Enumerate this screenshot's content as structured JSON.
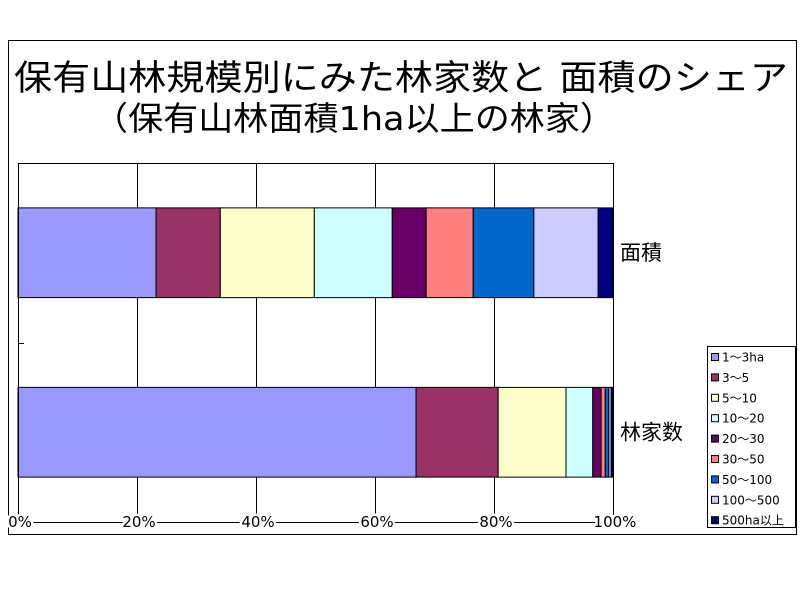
{
  "chart_data": {
    "type": "bar",
    "orientation": "horizontal",
    "stacking": "percent",
    "title": "保有山林規模別にみた林家数と 面積のシェア",
    "subtitle": "（保有山林面積1ha以上の林家）",
    "categories": [
      "面積",
      "林家数"
    ],
    "series": [
      {
        "name": "1～3ha",
        "values": [
          23.2,
          66.9
        ],
        "color": "#9999FF"
      },
      {
        "name": "3～5",
        "values": [
          10.8,
          13.8
        ],
        "color": "#993366"
      },
      {
        "name": "5～10",
        "values": [
          15.8,
          11.4
        ],
        "color": "#FFFFCC"
      },
      {
        "name": "10～20",
        "values": [
          13.1,
          4.5
        ],
        "color": "#CCFFFF"
      },
      {
        "name": "20～30",
        "values": [
          5.7,
          1.4
        ],
        "color": "#660066"
      },
      {
        "name": "30～50",
        "values": [
          7.9,
          0.7
        ],
        "color": "#FF8080"
      },
      {
        "name": "50～100",
        "values": [
          10.2,
          0.6
        ],
        "color": "#0066CC"
      },
      {
        "name": "100～500",
        "values": [
          10.8,
          0.4
        ],
        "color": "#CCCCFF"
      },
      {
        "name": "500ha以上",
        "values": [
          2.5,
          0.3
        ],
        "color": "#000080"
      }
    ],
    "xlim": [
      0,
      100
    ],
    "xticks": [
      0,
      20,
      40,
      60,
      80,
      100
    ],
    "xtick_labels": [
      "0%",
      "20%",
      "40%",
      "60%",
      "80%",
      "100%"
    ],
    "grid": true,
    "legend": "right"
  }
}
